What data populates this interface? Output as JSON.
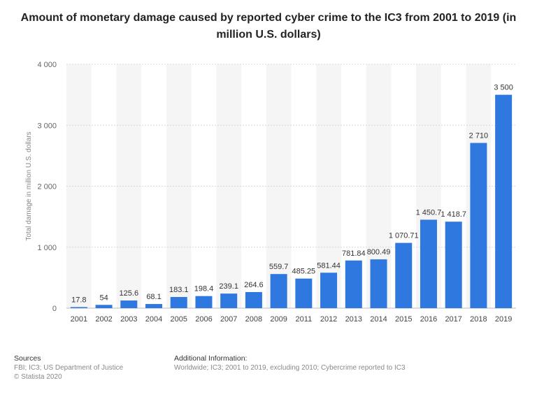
{
  "title": "Amount of monetary damage caused by reported cyber crime to the IC3 from 2001 to 2019 (in million U.S. dollars)",
  "chart_data": {
    "type": "bar",
    "categories": [
      "2001",
      "2002",
      "2003",
      "2004",
      "2005",
      "2006",
      "2007",
      "2008",
      "2009",
      "2011",
      "2012",
      "2013",
      "2014",
      "2015",
      "2016",
      "2017",
      "2018",
      "2019"
    ],
    "values": [
      17.8,
      54,
      125.6,
      68.1,
      183.1,
      198.4,
      239.1,
      264.6,
      559.7,
      485.25,
      581.44,
      781.84,
      800.49,
      1070.71,
      1450.7,
      1418.7,
      2710,
      3500
    ],
    "value_labels": [
      "17.8",
      "54",
      "125.6",
      "68.1",
      "183.1",
      "198.4",
      "239.1",
      "264.6",
      "559.7",
      "485.25",
      "581.44",
      "781.84",
      "800.49",
      "1 070.71",
      "1 450.7",
      "1 418.7",
      "2 710",
      "3 500"
    ],
    "ylabel": "Total damage in million U.S. dollars",
    "ylim": [
      0,
      4000
    ],
    "yticks": [
      0,
      1000,
      2000,
      3000,
      4000
    ],
    "ytick_labels": [
      "0",
      "1 000",
      "2 000",
      "3 000",
      "4 000"
    ],
    "bar_color": "#2f78e0",
    "grid": true,
    "legend": false
  },
  "footer": {
    "sources_heading": "Sources",
    "sources_line1": "FBI; IC3; US Department of Justice",
    "sources_line2": "© Statista 2020",
    "info_heading": "Additional Information:",
    "info_line1": "Worldwide; IC3; 2001 to 2019, excluding 2010; Cybercrime reported to IC3"
  }
}
